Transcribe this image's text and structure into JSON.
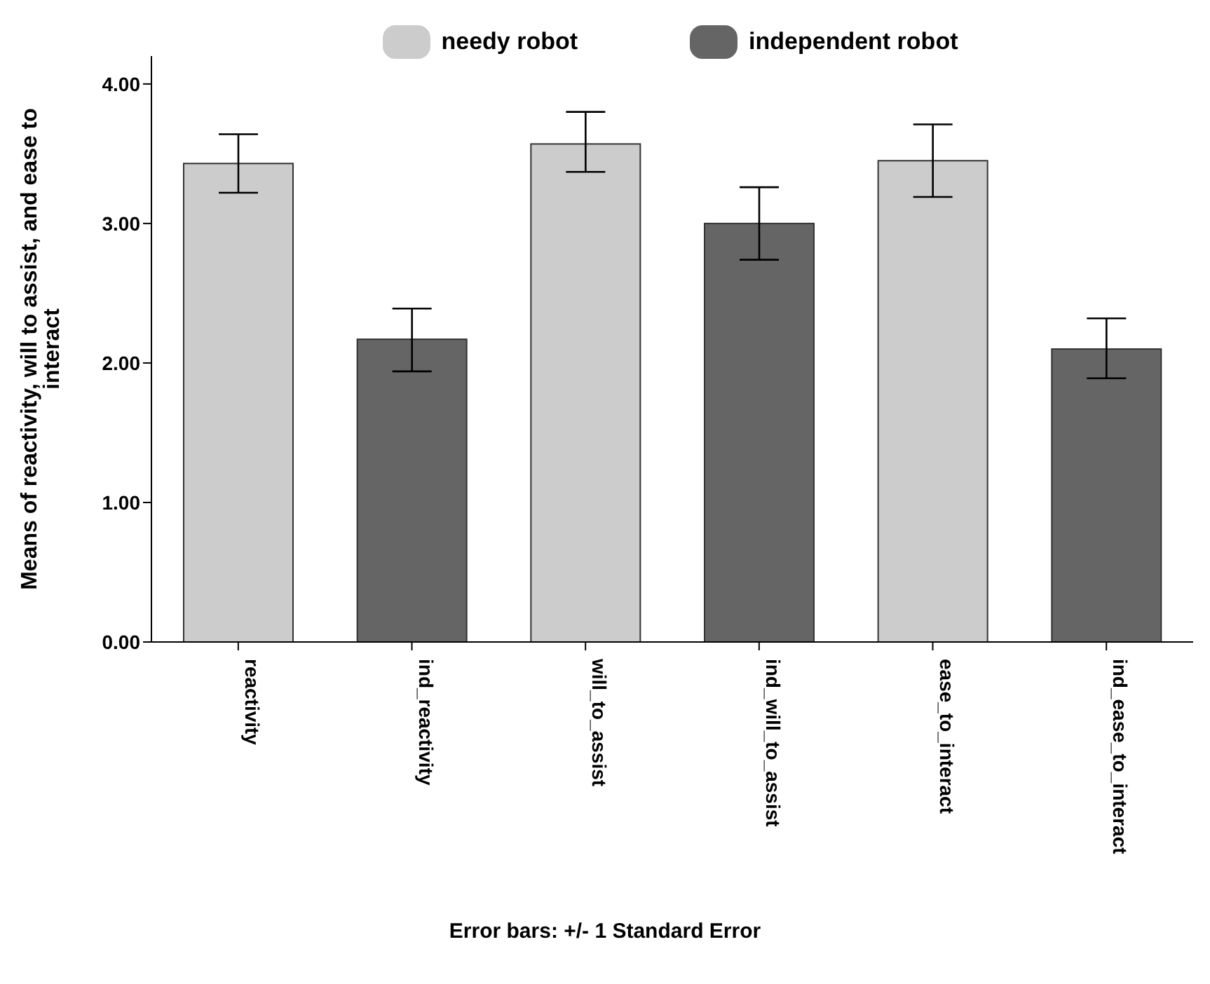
{
  "chart_data": {
    "type": "bar",
    "ylabel": "Means of reactivity, will to assist, and ease to interact",
    "categories": [
      "reactivity",
      "ind_reactivity",
      "will_to_assist",
      "ind_will_to_assist",
      "ease_to_interact",
      "ind_ease_to_interact"
    ],
    "series": [
      {
        "name": "needy robot",
        "color": "#cccccc",
        "values": [
          3.43,
          null,
          3.57,
          null,
          3.45,
          null
        ],
        "errors": [
          [
            3.22,
            3.64
          ],
          null,
          [
            3.37,
            3.8
          ],
          null,
          [
            3.19,
            3.71
          ],
          null
        ]
      },
      {
        "name": "independent robot",
        "color": "#656565",
        "values": [
          null,
          2.17,
          null,
          3.0,
          null,
          2.1
        ],
        "errors": [
          null,
          [
            1.94,
            2.39
          ],
          null,
          [
            2.74,
            3.26
          ],
          null,
          [
            1.89,
            2.32
          ]
        ]
      }
    ],
    "ylim": [
      0,
      4.2
    ],
    "yticks": [
      {
        "value": 0,
        "label": "0.00"
      },
      {
        "value": 1,
        "label": "1.00"
      },
      {
        "value": 2,
        "label": "2.00"
      },
      {
        "value": 3,
        "label": "3.00"
      },
      {
        "value": 4,
        "label": "4.00"
      }
    ],
    "legend": "top",
    "grid": false,
    "annotations": [
      "Error bars: +/- 1 Standard Error"
    ]
  }
}
